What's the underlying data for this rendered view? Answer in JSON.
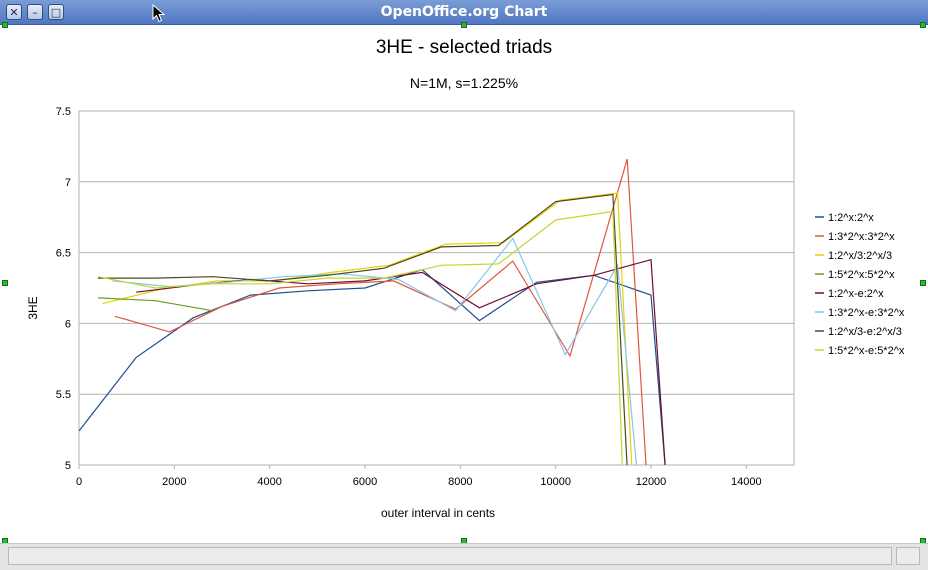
{
  "window": {
    "title": "OpenOffice.org Chart"
  },
  "chart_data": {
    "type": "line",
    "title": "3HE - selected triads",
    "subtitle": "N=1M, s=1.225%",
    "xlabel": "outer interval in cents",
    "ylabel": "3HE",
    "xlim": [
      0,
      15000
    ],
    "ylim": [
      5,
      7.5
    ],
    "x_ticks": [
      "0",
      "2000",
      "4000",
      "6000",
      "8000",
      "10000",
      "12000",
      "14000"
    ],
    "y_ticks": [
      "5",
      "5.5",
      "6",
      "6.5",
      "7",
      "7.5"
    ],
    "grid": "horizontal",
    "legend_position": "right",
    "series": [
      {
        "name": "1:2^x:2^x",
        "color": "#1f4e8c",
        "points": [
          [
            0,
            5.24
          ],
          [
            1200,
            5.76
          ],
          [
            2400,
            6.04
          ],
          [
            3600,
            6.2
          ],
          [
            4800,
            6.23
          ],
          [
            6000,
            6.25
          ],
          [
            7200,
            6.38
          ],
          [
            8400,
            6.02
          ],
          [
            9600,
            6.29
          ],
          [
            10800,
            6.34
          ],
          [
            12000,
            6.2
          ],
          [
            12300,
            4.98
          ]
        ]
      },
      {
        "name": "1:3*2^x:3*2^x",
        "color": "#e0563a",
        "points": [
          [
            750,
            6.05
          ],
          [
            1900,
            5.94
          ],
          [
            3000,
            6.12
          ],
          [
            4200,
            6.25
          ],
          [
            5400,
            6.28
          ],
          [
            6600,
            6.3
          ],
          [
            7900,
            6.1
          ],
          [
            9100,
            6.44
          ],
          [
            10300,
            5.77
          ],
          [
            11500,
            7.16
          ],
          [
            11900,
            4.98
          ]
        ]
      },
      {
        "name": "1:2^x/3:2^x/3",
        "color": "#e8d10a",
        "points": [
          [
            500,
            6.14
          ],
          [
            1700,
            6.24
          ],
          [
            2900,
            6.3
          ],
          [
            4100,
            6.3
          ],
          [
            5300,
            6.36
          ],
          [
            6500,
            6.41
          ],
          [
            7700,
            6.56
          ],
          [
            8900,
            6.57
          ],
          [
            10100,
            6.87
          ],
          [
            11300,
            6.92
          ],
          [
            11600,
            4.98
          ]
        ]
      },
      {
        "name": "1:5*2^x:5*2^x",
        "color": "#6a9e1f",
        "points": [
          [
            400,
            6.18
          ],
          [
            1600,
            6.16
          ],
          [
            2800,
            6.09
          ]
        ]
      },
      {
        "name": "1:2^x-e:2^x",
        "color": "#6e0f2e",
        "points": [
          [
            1200,
            6.22
          ],
          [
            2400,
            6.27
          ],
          [
            3600,
            6.31
          ],
          [
            4800,
            6.28
          ],
          [
            6000,
            6.3
          ],
          [
            7200,
            6.36
          ],
          [
            8400,
            6.11
          ],
          [
            9600,
            6.28
          ],
          [
            10800,
            6.34
          ],
          [
            12000,
            6.45
          ],
          [
            12300,
            4.98
          ]
        ]
      },
      {
        "name": "1:3*2^x-e:3*2^x",
        "color": "#86c6e8",
        "points": [
          [
            700,
            6.3
          ],
          [
            1900,
            6.26
          ],
          [
            3100,
            6.29
          ],
          [
            4300,
            6.33
          ],
          [
            5500,
            6.35
          ],
          [
            6700,
            6.31
          ],
          [
            7900,
            6.09
          ],
          [
            9100,
            6.6
          ],
          [
            10200,
            5.78
          ],
          [
            11300,
            6.41
          ],
          [
            11700,
            4.98
          ]
        ]
      },
      {
        "name": "1:2^x/3-e:2^x/3",
        "color": "#4a4a22",
        "points": [
          [
            400,
            6.32
          ],
          [
            1600,
            6.32
          ],
          [
            2800,
            6.33
          ],
          [
            4000,
            6.3
          ],
          [
            5200,
            6.34
          ],
          [
            6400,
            6.39
          ],
          [
            7600,
            6.54
          ],
          [
            8800,
            6.55
          ],
          [
            10000,
            6.86
          ],
          [
            11200,
            6.91
          ],
          [
            11500,
            4.98
          ]
        ]
      },
      {
        "name": "1:5*2^x-e:5*2^x",
        "color": "#c4d630",
        "points": [
          [
            400,
            6.33
          ],
          [
            1600,
            6.25
          ],
          [
            2800,
            6.28
          ],
          [
            4000,
            6.28
          ],
          [
            5200,
            6.32
          ],
          [
            6400,
            6.32
          ],
          [
            7600,
            6.41
          ],
          [
            8800,
            6.42
          ],
          [
            10000,
            6.73
          ],
          [
            11200,
            6.79
          ],
          [
            11400,
            4.98
          ]
        ]
      }
    ]
  }
}
